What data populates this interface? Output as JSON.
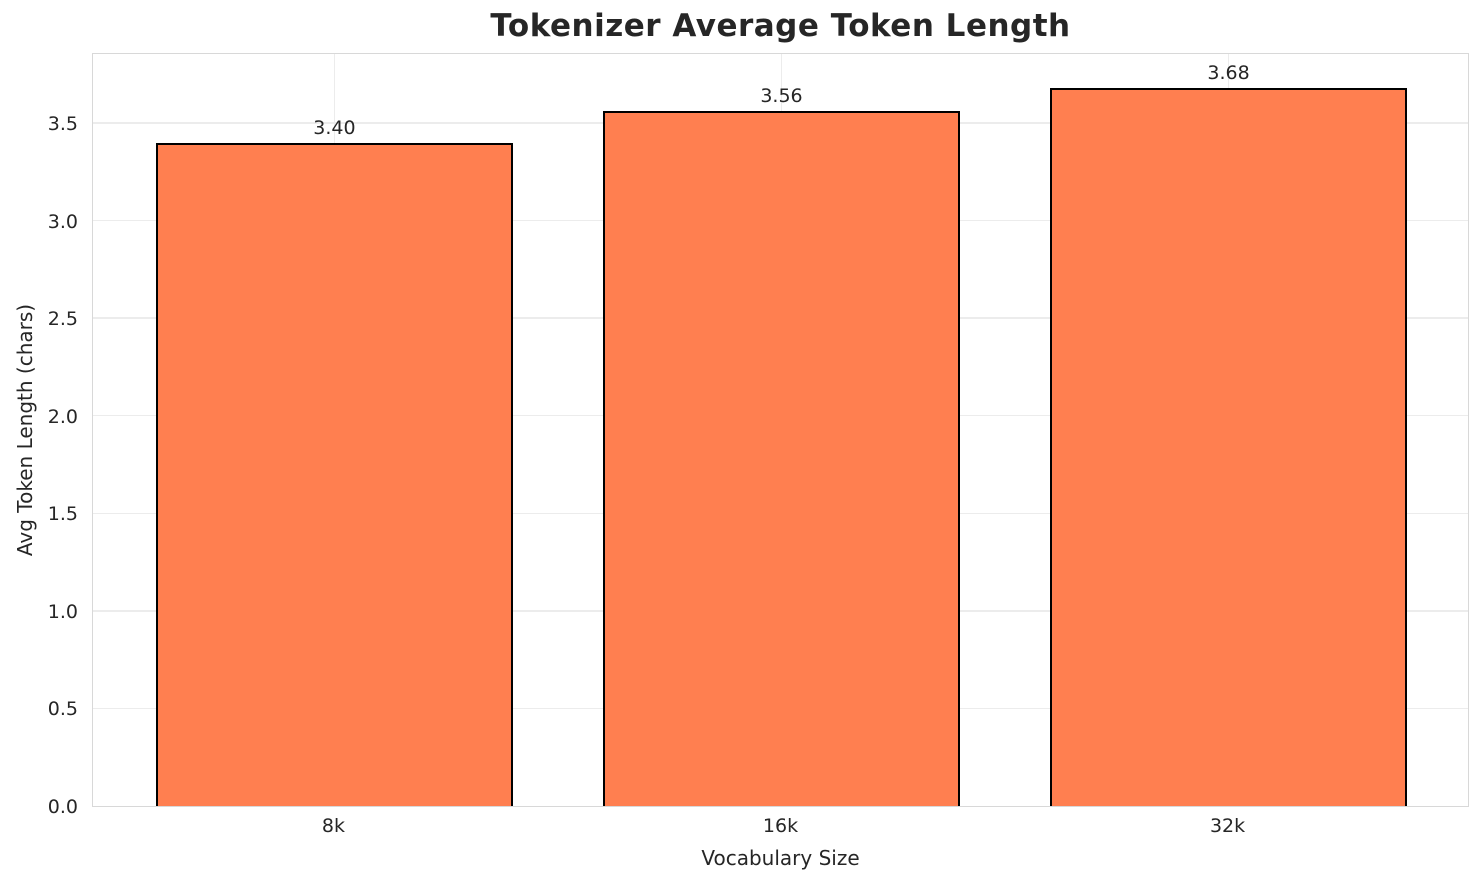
{
  "chart_data": {
    "type": "bar",
    "title": "Tokenizer Average Token Length",
    "xlabel": "Vocabulary Size",
    "ylabel": "Avg Token Length (chars)",
    "categories": [
      "8k",
      "16k",
      "32k"
    ],
    "values": [
      3.4,
      3.56,
      3.68
    ],
    "value_labels": [
      "3.40",
      "3.56",
      "3.68"
    ],
    "yticks": [
      0.0,
      0.5,
      1.0,
      1.5,
      2.0,
      2.5,
      3.0,
      3.5
    ],
    "ytick_labels": [
      "0.0",
      "0.5",
      "1.0",
      "1.5",
      "2.0",
      "2.5",
      "3.0",
      "3.5"
    ],
    "ylim": [
      0,
      3.864
    ],
    "xlim": [
      -0.54,
      2.54
    ],
    "bar_width": 0.8,
    "grid": true,
    "legend": "none",
    "colors": {
      "bar_fill": "#FF7F50",
      "bar_edge": "#000000",
      "grid": "#ececec",
      "spine": "#d8d8d8",
      "text": "#262626",
      "background": "#ffffff"
    }
  }
}
